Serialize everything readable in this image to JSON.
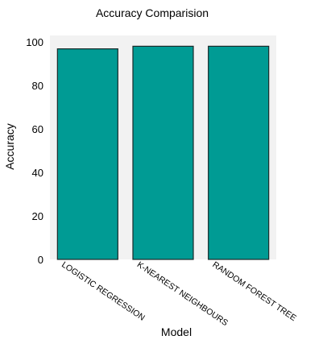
{
  "chart_data": {
    "type": "bar",
    "title": "Accuracy Comparision",
    "xlabel": "Model",
    "ylabel": "Accuracy",
    "categories": [
      "LOGISTIC REGRESSION",
      "K-NEAREST NEIGHBOURS",
      "RANDOM FOREST TREE"
    ],
    "values": [
      96.8,
      98.0,
      98.0
    ],
    "yticks": [
      "0",
      "20",
      "40",
      "60",
      "80",
      "100"
    ],
    "ylim": [
      0,
      100
    ],
    "grid": false,
    "bar_color": "#009b94",
    "bar_edge_color": "#1a2a2a",
    "plot_background": "#f2f2f2"
  }
}
